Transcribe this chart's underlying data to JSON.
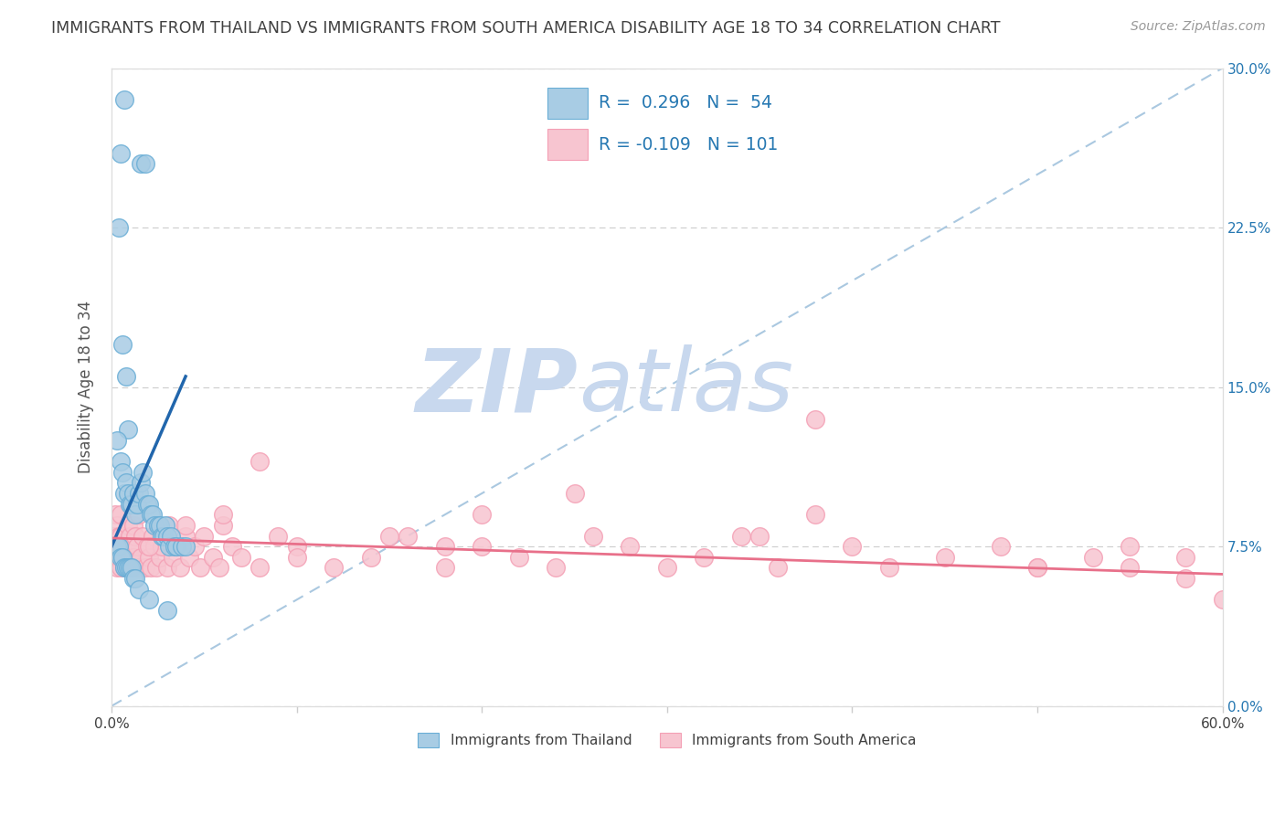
{
  "title": "IMMIGRANTS FROM THAILAND VS IMMIGRANTS FROM SOUTH AMERICA DISABILITY AGE 18 TO 34 CORRELATION CHART",
  "source": "Source: ZipAtlas.com",
  "ylabel": "Disability Age 18 to 34",
  "x_min": 0.0,
  "x_max": 0.6,
  "y_min": 0.0,
  "y_max": 0.3,
  "y_ticks": [
    0.0,
    0.075,
    0.15,
    0.225,
    0.3
  ],
  "y_tick_labels": [
    "0.0%",
    "7.5%",
    "15.0%",
    "22.5%",
    "30.0%"
  ],
  "blue_color": "#a8cce4",
  "blue_edge_color": "#6aaed6",
  "pink_color": "#f7c5d0",
  "pink_edge_color": "#f4a0b5",
  "blue_line_color": "#2166ac",
  "pink_line_color": "#e8708a",
  "diag_color": "#aac8e0",
  "watermark_zip_color": "#c8d8ee",
  "watermark_atlas_color": "#c8d8ee",
  "grid_color": "#cccccc",
  "background_color": "#ffffff",
  "title_color": "#404040",
  "axis_label_color": "#555555",
  "tick_color_right": "#2678b2",
  "legend_text_color": "#2678b2",
  "thailand_x": [
    0.005,
    0.007,
    0.016,
    0.018,
    0.004,
    0.006,
    0.008,
    0.009,
    0.003,
    0.005,
    0.006,
    0.007,
    0.008,
    0.009,
    0.01,
    0.011,
    0.012,
    0.013,
    0.014,
    0.015,
    0.016,
    0.017,
    0.018,
    0.019,
    0.02,
    0.021,
    0.022,
    0.023,
    0.025,
    0.026,
    0.027,
    0.028,
    0.029,
    0.03,
    0.031,
    0.032,
    0.034,
    0.035,
    0.038,
    0.04,
    0.003,
    0.004,
    0.005,
    0.006,
    0.007,
    0.008,
    0.009,
    0.01,
    0.011,
    0.012,
    0.013,
    0.015,
    0.02,
    0.03
  ],
  "thailand_y": [
    0.26,
    0.285,
    0.255,
    0.255,
    0.225,
    0.17,
    0.155,
    0.13,
    0.125,
    0.115,
    0.11,
    0.1,
    0.105,
    0.1,
    0.095,
    0.095,
    0.1,
    0.09,
    0.095,
    0.1,
    0.105,
    0.11,
    0.1,
    0.095,
    0.095,
    0.09,
    0.09,
    0.085,
    0.085,
    0.085,
    0.08,
    0.08,
    0.085,
    0.08,
    0.075,
    0.08,
    0.075,
    0.075,
    0.075,
    0.075,
    0.075,
    0.075,
    0.07,
    0.07,
    0.065,
    0.065,
    0.065,
    0.065,
    0.065,
    0.06,
    0.06,
    0.055,
    0.05,
    0.045
  ],
  "south_america_x": [
    0.001,
    0.001,
    0.002,
    0.002,
    0.003,
    0.003,
    0.003,
    0.004,
    0.004,
    0.004,
    0.005,
    0.005,
    0.005,
    0.006,
    0.006,
    0.007,
    0.007,
    0.008,
    0.008,
    0.009,
    0.009,
    0.01,
    0.01,
    0.011,
    0.011,
    0.012,
    0.012,
    0.013,
    0.013,
    0.014,
    0.015,
    0.015,
    0.016,
    0.017,
    0.018,
    0.019,
    0.02,
    0.021,
    0.022,
    0.023,
    0.024,
    0.025,
    0.026,
    0.027,
    0.028,
    0.03,
    0.031,
    0.033,
    0.035,
    0.037,
    0.04,
    0.042,
    0.045,
    0.048,
    0.05,
    0.055,
    0.058,
    0.06,
    0.065,
    0.07,
    0.08,
    0.09,
    0.1,
    0.12,
    0.14,
    0.16,
    0.18,
    0.2,
    0.22,
    0.24,
    0.26,
    0.28,
    0.3,
    0.32,
    0.34,
    0.36,
    0.38,
    0.4,
    0.42,
    0.45,
    0.48,
    0.5,
    0.53,
    0.55,
    0.38,
    0.25,
    0.2,
    0.15,
    0.08,
    0.06,
    0.04,
    0.03,
    0.02,
    0.55,
    0.58,
    0.6,
    0.58,
    0.5,
    0.35,
    0.18,
    0.1
  ],
  "south_america_y": [
    0.075,
    0.08,
    0.07,
    0.09,
    0.065,
    0.075,
    0.085,
    0.07,
    0.08,
    0.075,
    0.065,
    0.08,
    0.09,
    0.075,
    0.07,
    0.065,
    0.08,
    0.07,
    0.075,
    0.065,
    0.085,
    0.07,
    0.08,
    0.065,
    0.075,
    0.07,
    0.085,
    0.065,
    0.08,
    0.075,
    0.065,
    0.09,
    0.07,
    0.08,
    0.065,
    0.075,
    0.07,
    0.065,
    0.08,
    0.075,
    0.065,
    0.085,
    0.07,
    0.075,
    0.08,
    0.065,
    0.085,
    0.07,
    0.075,
    0.065,
    0.08,
    0.07,
    0.075,
    0.065,
    0.08,
    0.07,
    0.065,
    0.085,
    0.075,
    0.07,
    0.065,
    0.08,
    0.075,
    0.065,
    0.07,
    0.08,
    0.065,
    0.075,
    0.07,
    0.065,
    0.08,
    0.075,
    0.065,
    0.07,
    0.08,
    0.065,
    0.135,
    0.075,
    0.065,
    0.07,
    0.075,
    0.065,
    0.07,
    0.075,
    0.09,
    0.1,
    0.09,
    0.08,
    0.115,
    0.09,
    0.085,
    0.08,
    0.075,
    0.065,
    0.07,
    0.05,
    0.06,
    0.065,
    0.08,
    0.075,
    0.07
  ],
  "blue_trend_x0": 0.0,
  "blue_trend_y0": 0.075,
  "blue_trend_x1": 0.04,
  "blue_trend_y1": 0.155,
  "pink_trend_x0": 0.0,
  "pink_trend_y0": 0.079,
  "pink_trend_x1": 0.6,
  "pink_trend_y1": 0.062
}
